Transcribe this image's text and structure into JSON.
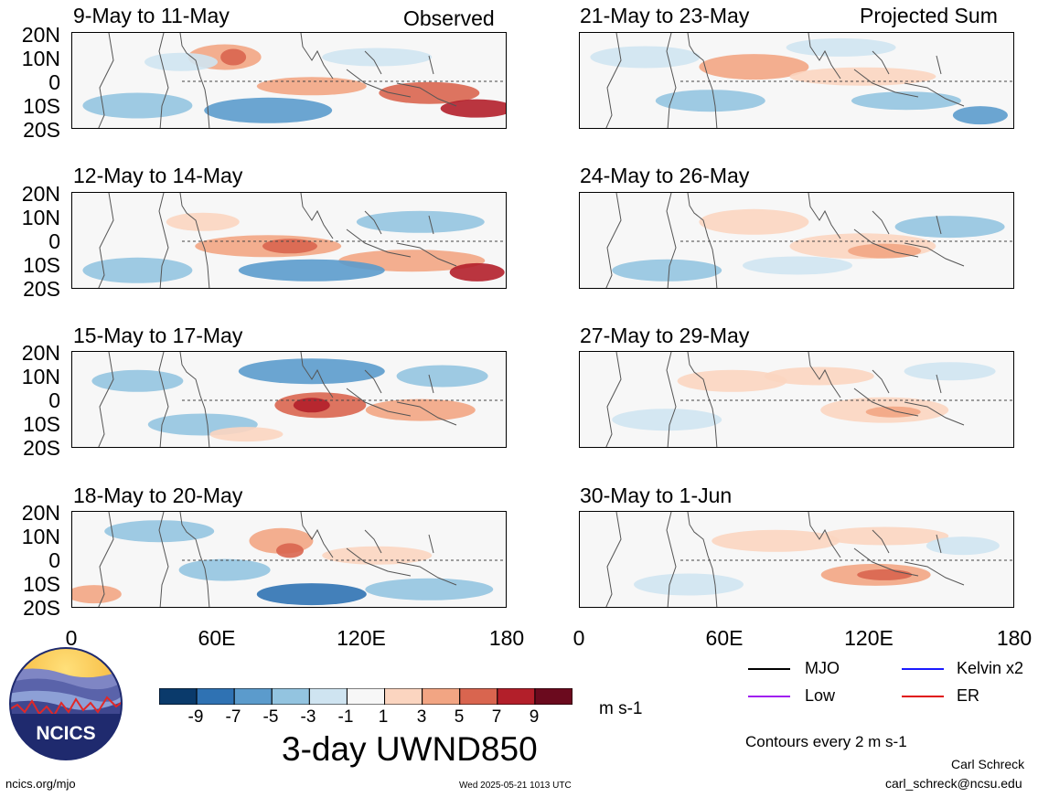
{
  "observed_label": "Observed",
  "projected_label": "Projected Sum",
  "lat_labels": [
    "20N",
    "10N",
    "0",
    "10S",
    "20S"
  ],
  "lon_labels": [
    "0",
    "60E",
    "120E",
    "180"
  ],
  "chart_data": {
    "type": "heatmap",
    "title": "3-day UWND850",
    "units": "m s-1",
    "domain": {
      "lon": [
        0,
        180
      ],
      "lat": [
        -20,
        20
      ]
    },
    "colorbar": {
      "ticks": [
        "-9",
        "-7",
        "-5",
        "-3",
        "-1",
        "1",
        "3",
        "5",
        "7",
        "9"
      ],
      "colors": [
        "#0a3a6b",
        "#2f72b3",
        "#5b9bcc",
        "#93c4e0",
        "#cfe4f1",
        "#f7f7f7",
        "#fbd5c0",
        "#f2a583",
        "#d9654f",
        "#b31f2a",
        "#6b0a1e"
      ]
    },
    "panels": [
      {
        "column": "Observed",
        "label": "9-May to 11-May"
      },
      {
        "column": "Observed",
        "label": "12-May to 14-May"
      },
      {
        "column": "Observed",
        "label": "15-May to 17-May"
      },
      {
        "column": "Observed",
        "label": "18-May to 20-May"
      },
      {
        "column": "Projected Sum",
        "label": "21-May to 23-May"
      },
      {
        "column": "Projected Sum",
        "label": "24-May to 26-May"
      },
      {
        "column": "Projected Sum",
        "label": "27-May to 29-May"
      },
      {
        "column": "Projected Sum",
        "label": "30-May to 1-Jun"
      }
    ]
  },
  "legend": [
    {
      "label": "MJO",
      "color": "#000000"
    },
    {
      "label": "Kelvin x2",
      "color": "#1a1aff"
    },
    {
      "label": "Low",
      "color": "#a020f0"
    },
    {
      "label": "ER",
      "color": "#e01010"
    }
  ],
  "contour_note": "Contours every 2 m s-1",
  "logo_text": "NCICS",
  "footer": {
    "website": "ncics.org/mjo",
    "timestamp": "Wed 2025-05-21 1013 UTC",
    "author": "Carl Schreck",
    "email": "carl_schreck@ncsu.edu"
  }
}
